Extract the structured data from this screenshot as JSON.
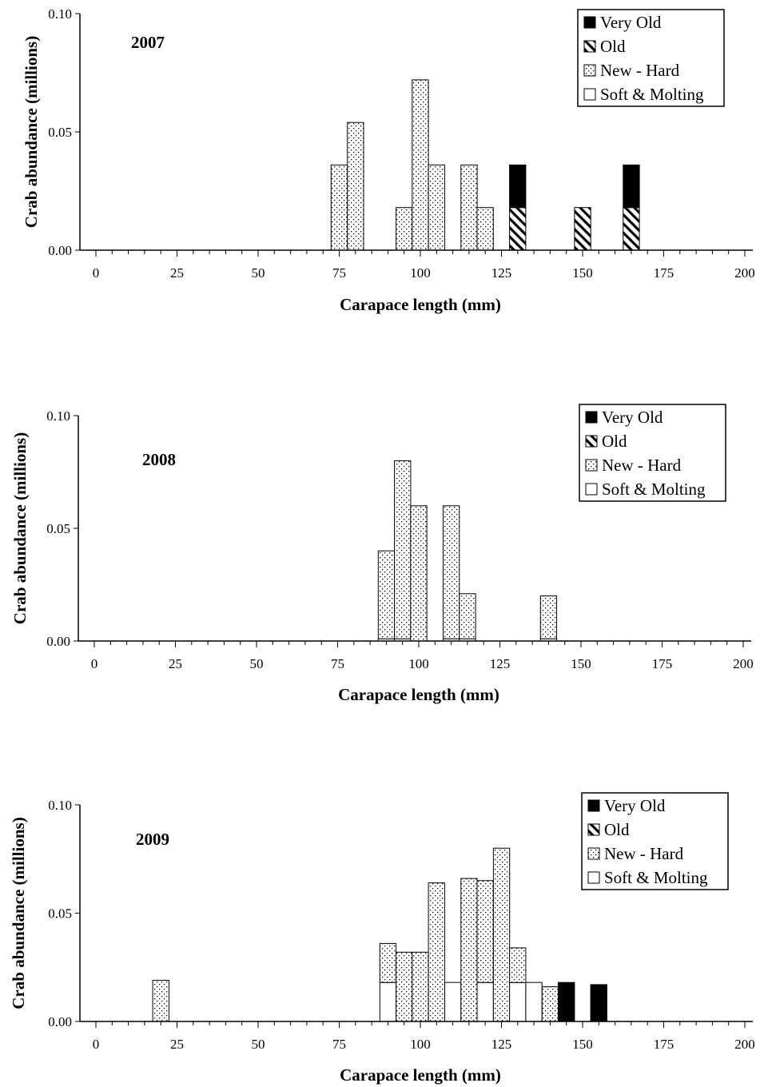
{
  "chart_data": [
    {
      "type": "bar",
      "stacked": true,
      "title": "2007",
      "xlabel": "Carapace length (mm)",
      "ylabel": "Crab abundance (millions)",
      "xlim": [
        0,
        200
      ],
      "ylim": [
        0,
        0.1
      ],
      "xticks": [
        "0",
        "25",
        "50",
        "75",
        "100",
        "125",
        "150",
        "175",
        "200"
      ],
      "yticks": [
        "0.00",
        "0.05",
        "0.10"
      ],
      "bin_width": 5,
      "legend": [
        "Very Old",
        "Old",
        "New - Hard",
        "Soft & Molting"
      ],
      "legend_position": "top-right",
      "grid": false,
      "bins": [
        75,
        80,
        95,
        100,
        105,
        115,
        120,
        130,
        150,
        165
      ],
      "series": [
        {
          "name": "Soft & Molting",
          "values": [
            0,
            0,
            0,
            0,
            0,
            0,
            0,
            0,
            0,
            0
          ]
        },
        {
          "name": "New - Hard",
          "values": [
            0.036,
            0.054,
            0.018,
            0.072,
            0.036,
            0.036,
            0.018,
            0,
            0,
            0
          ]
        },
        {
          "name": "Old",
          "values": [
            0,
            0,
            0,
            0,
            0,
            0,
            0,
            0.018,
            0.018,
            0.018
          ]
        },
        {
          "name": "Very Old",
          "values": [
            0,
            0,
            0,
            0,
            0,
            0,
            0,
            0.018,
            0,
            0.018
          ]
        }
      ]
    },
    {
      "type": "bar",
      "stacked": true,
      "title": "2008",
      "xlabel": "Carapace length (mm)",
      "ylabel": "Crab abundance (millions)",
      "xlim": [
        0,
        200
      ],
      "ylim": [
        0,
        0.1
      ],
      "xticks": [
        "0",
        "25",
        "50",
        "75",
        "100",
        "125",
        "150",
        "175",
        "200"
      ],
      "yticks": [
        "0.00",
        "0.05",
        "0.10"
      ],
      "bin_width": 5,
      "legend": [
        "Very Old",
        "Old",
        "New - Hard",
        "Soft & Molting"
      ],
      "legend_position": "top-right",
      "grid": false,
      "bins": [
        90,
        95,
        100,
        110,
        115,
        140
      ],
      "series": [
        {
          "name": "Soft & Molting",
          "values": [
            0.001,
            0.001,
            0,
            0.001,
            0.001,
            0.001
          ]
        },
        {
          "name": "New - Hard",
          "values": [
            0.039,
            0.079,
            0.06,
            0.059,
            0.02,
            0.019
          ]
        },
        {
          "name": "Old",
          "values": [
            0,
            0,
            0,
            0,
            0,
            0
          ]
        },
        {
          "name": "Very Old",
          "values": [
            0,
            0,
            0,
            0,
            0,
            0
          ]
        }
      ]
    },
    {
      "type": "bar",
      "stacked": true,
      "title": "2009",
      "xlabel": "Carapace length (mm)",
      "ylabel": "Crab abundance (millions)",
      "xlim": [
        0,
        200
      ],
      "ylim": [
        0,
        0.1
      ],
      "xticks": [
        "0",
        "25",
        "50",
        "75",
        "100",
        "125",
        "150",
        "175",
        "200"
      ],
      "yticks": [
        "0.00",
        "0.05",
        "0.10"
      ],
      "bin_width": 5,
      "legend": [
        "Very Old",
        "Old",
        "New - Hard",
        "Soft & Molting"
      ],
      "legend_position": "top-right",
      "grid": false,
      "bins": [
        20,
        90,
        95,
        100,
        105,
        110,
        115,
        120,
        125,
        130,
        135,
        140,
        145,
        155
      ],
      "series": [
        {
          "name": "Soft & Molting",
          "values": [
            0,
            0.018,
            0,
            0,
            0,
            0.018,
            0,
            0.018,
            0,
            0.018,
            0.018,
            0,
            0,
            0
          ]
        },
        {
          "name": "New - Hard",
          "values": [
            0.019,
            0.018,
            0.032,
            0.032,
            0.064,
            0,
            0.066,
            0.047,
            0.08,
            0.016,
            0,
            0.016,
            0,
            0
          ]
        },
        {
          "name": "Old",
          "values": [
            0,
            0,
            0,
            0,
            0,
            0,
            0,
            0,
            0,
            0,
            0,
            0,
            0,
            0
          ]
        },
        {
          "name": "Very Old",
          "values": [
            0,
            0,
            0,
            0,
            0,
            0,
            0,
            0,
            0,
            0,
            0,
            0,
            0.018,
            0.017
          ]
        }
      ]
    }
  ]
}
